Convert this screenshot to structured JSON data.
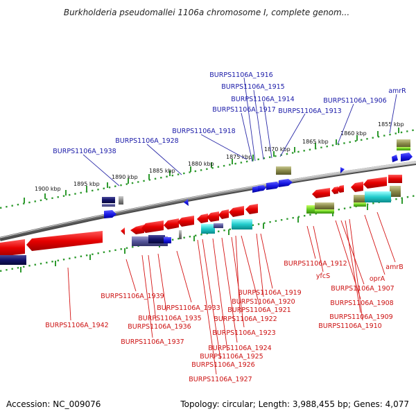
{
  "header": {
    "title": "Burkholderia pseudomallei 1106a chromosome I, complete genom..."
  },
  "footer": {
    "accession": "Accession: NC_009076",
    "topology": "Topology: circular; Length: 3,988,455 bp; Genes: 4,077"
  },
  "ruler": {
    "ticks": [
      "1900 kbp",
      "1895 kbp",
      "1890 kbp",
      "1885 kbp",
      "1880 kbp",
      "1875 kbp",
      "1870 kbp",
      "1865 kbp",
      "1860 kbp",
      "1855 kbp"
    ]
  },
  "colors": {
    "forward_gene": "#1a1ae6",
    "reverse_gene": "#e60000",
    "backbone": "#7a7a7a",
    "ruler_dots": "#2e9a2e",
    "label_forward": "#1a1aa8",
    "label_reverse": "#cc1111"
  },
  "labels_forward": [
    "BURPS1106A_1916",
    "BURPS1106A_1915",
    "BURPS1106A_1914",
    "BURPS1106A_1917",
    "BURPS1106A_1913",
    "BURPS1106A_1906",
    "amrR",
    "BURPS1106A_1918",
    "BURPS1106A_1928",
    "BURPS1106A_1938"
  ],
  "labels_reverse": [
    "BURPS1106A_1912",
    "yfcS",
    "oprA",
    "amrB",
    "BURPS1106A_1907",
    "BURPS1106A_1908",
    "BURPS1106A_1909",
    "BURPS1106A_1910",
    "BURPS1106A_1919",
    "BURPS1106A_1920",
    "BURPS1106A_1921",
    "BURPS1106A_1922",
    "BURPS1106A_1923",
    "BURPS1106A_1924",
    "BURPS1106A_1925",
    "BURPS1106A_1926",
    "BURPS1106A_1927",
    "BURPS1106A_1933",
    "BURPS1106A_1935",
    "BURPS1106A_1936",
    "BURPS1106A_1937",
    "BURPS1106A_1939",
    "BURPS1106A_1942"
  ]
}
